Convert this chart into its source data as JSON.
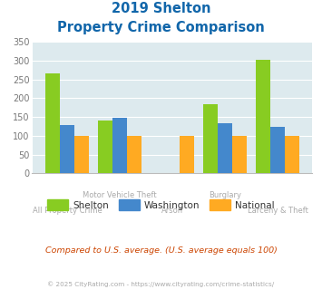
{
  "title_line1": "2019 Shelton",
  "title_line2": "Property Crime Comparison",
  "shelton": [
    267,
    140,
    0,
    185,
    303
  ],
  "washington": [
    128,
    147,
    0,
    133,
    124
  ],
  "national": [
    100,
    100,
    100,
    100,
    100
  ],
  "colors": {
    "shelton": "#88cc22",
    "washington": "#4488cc",
    "national": "#ffaa22"
  },
  "ylim": [
    0,
    350
  ],
  "yticks": [
    0,
    50,
    100,
    150,
    200,
    250,
    300,
    350
  ],
  "bg_color": "#ddeaee",
  "title_color": "#1166aa",
  "xlabel_color": "#aaaaaa",
  "legend_label_color": "#333333",
  "footer_text": "Compared to U.S. average. (U.S. average equals 100)",
  "footer_color": "#cc4400",
  "copyright_text": "© 2025 CityRating.com - https://www.cityrating.com/crime-statistics/",
  "copyright_color": "#aaaaaa",
  "row1_labels": [
    "",
    "Motor Vehicle Theft",
    "",
    "Burglary",
    ""
  ],
  "row2_labels": [
    "All Property Crime",
    "",
    "Arson",
    "",
    "Larceny & Theft"
  ],
  "positions": [
    0,
    1,
    2,
    3,
    4
  ],
  "bar_width": 0.28
}
